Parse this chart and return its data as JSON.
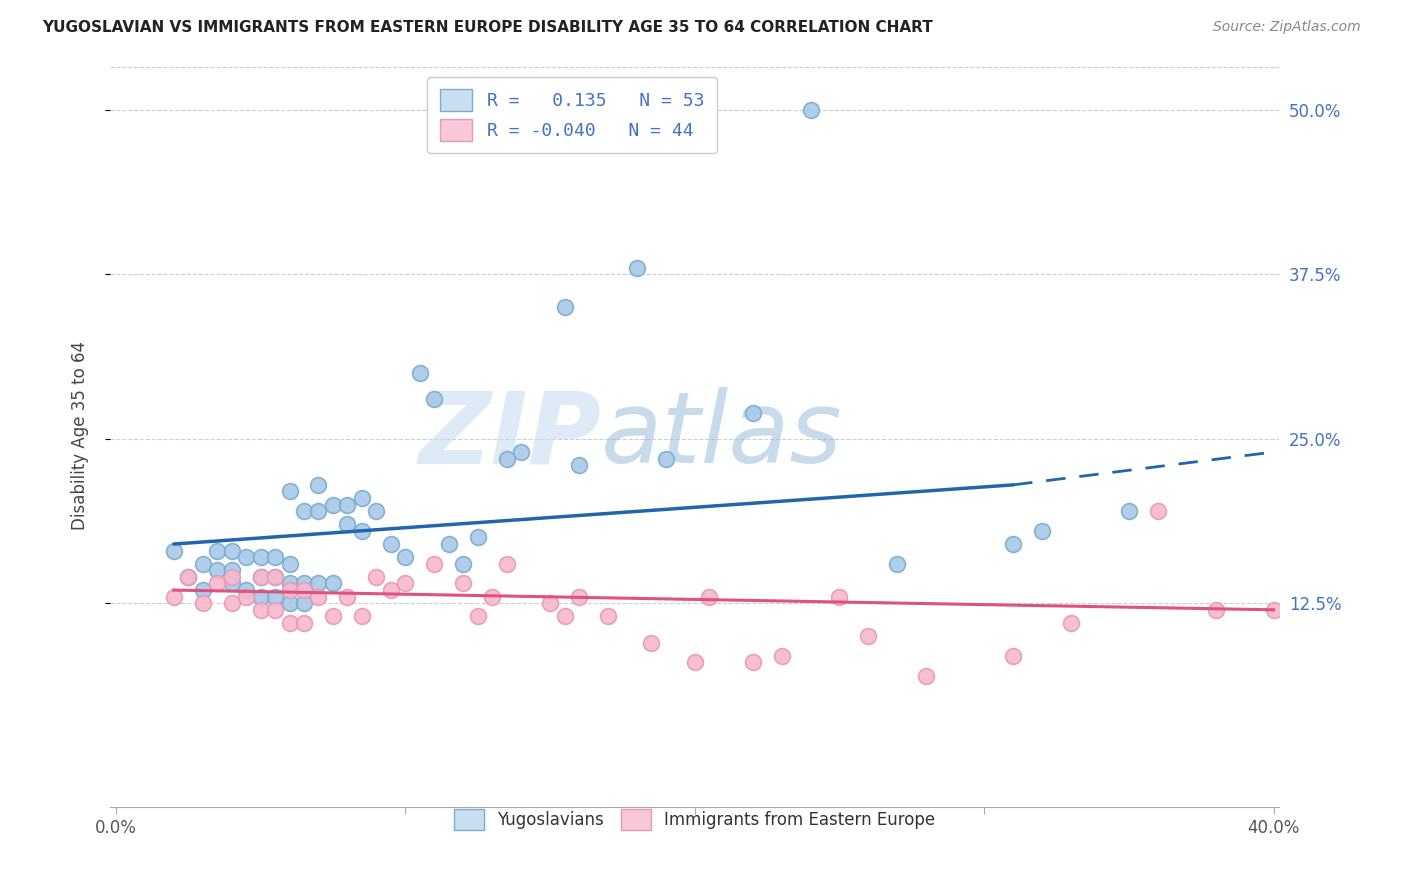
{
  "title": "YUGOSLAVIAN VS IMMIGRANTS FROM EASTERN EUROPE DISABILITY AGE 35 TO 64 CORRELATION CHART",
  "source": "Source: ZipAtlas.com",
  "ylabel": "Disability Age 35 to 64",
  "ytick_labels": [
    "12.5%",
    "25.0%",
    "37.5%",
    "50.0%"
  ],
  "ytick_values": [
    0.125,
    0.25,
    0.375,
    0.5
  ],
  "xlim": [
    0.0,
    0.4
  ],
  "ylim": [
    -0.03,
    0.535
  ],
  "legend_labels": [
    "Yugoslavians",
    "Immigrants from Eastern Europe"
  ],
  "r_blue": 0.135,
  "n_blue": 53,
  "r_pink": -0.04,
  "n_pink": 44,
  "watermark_zip": "ZIP",
  "watermark_atlas": "atlas",
  "blue_color": "#a8c8e8",
  "pink_color": "#f8b8cc",
  "line_blue": "#2166ac",
  "line_pink": "#e05080",
  "blue_points_x": [
    0.02,
    0.025,
    0.03,
    0.03,
    0.035,
    0.035,
    0.04,
    0.04,
    0.04,
    0.045,
    0.045,
    0.05,
    0.05,
    0.05,
    0.055,
    0.055,
    0.055,
    0.06,
    0.06,
    0.06,
    0.06,
    0.065,
    0.065,
    0.065,
    0.07,
    0.07,
    0.07,
    0.075,
    0.075,
    0.08,
    0.08,
    0.085,
    0.085,
    0.09,
    0.095,
    0.1,
    0.105,
    0.11,
    0.115,
    0.12,
    0.125,
    0.135,
    0.14,
    0.155,
    0.16,
    0.18,
    0.19,
    0.22,
    0.24,
    0.27,
    0.31,
    0.32,
    0.35
  ],
  "blue_points_y": [
    0.165,
    0.145,
    0.135,
    0.155,
    0.15,
    0.165,
    0.14,
    0.15,
    0.165,
    0.135,
    0.16,
    0.13,
    0.145,
    0.16,
    0.13,
    0.145,
    0.16,
    0.125,
    0.14,
    0.155,
    0.21,
    0.125,
    0.14,
    0.195,
    0.14,
    0.195,
    0.215,
    0.14,
    0.2,
    0.185,
    0.2,
    0.18,
    0.205,
    0.195,
    0.17,
    0.16,
    0.3,
    0.28,
    0.17,
    0.155,
    0.175,
    0.235,
    0.24,
    0.35,
    0.23,
    0.38,
    0.235,
    0.27,
    0.5,
    0.155,
    0.17,
    0.18,
    0.195
  ],
  "pink_points_x": [
    0.02,
    0.025,
    0.03,
    0.035,
    0.04,
    0.04,
    0.045,
    0.05,
    0.05,
    0.055,
    0.055,
    0.06,
    0.06,
    0.065,
    0.065,
    0.07,
    0.075,
    0.08,
    0.085,
    0.09,
    0.095,
    0.1,
    0.11,
    0.12,
    0.125,
    0.13,
    0.135,
    0.15,
    0.155,
    0.16,
    0.17,
    0.185,
    0.2,
    0.205,
    0.22,
    0.23,
    0.25,
    0.26,
    0.28,
    0.31,
    0.33,
    0.36,
    0.38,
    0.4
  ],
  "pink_points_y": [
    0.13,
    0.145,
    0.125,
    0.14,
    0.125,
    0.145,
    0.13,
    0.12,
    0.145,
    0.12,
    0.145,
    0.11,
    0.135,
    0.11,
    0.135,
    0.13,
    0.115,
    0.13,
    0.115,
    0.145,
    0.135,
    0.14,
    0.155,
    0.14,
    0.115,
    0.13,
    0.155,
    0.125,
    0.115,
    0.13,
    0.115,
    0.095,
    0.08,
    0.13,
    0.08,
    0.085,
    0.13,
    0.1,
    0.07,
    0.085,
    0.11,
    0.195,
    0.12,
    0.12
  ],
  "blue_line_x_start": 0.02,
  "blue_line_x_solid_end": 0.31,
  "blue_line_x_dash_end": 0.4,
  "blue_line_y_start": 0.17,
  "blue_line_y_solid_end": 0.215,
  "blue_line_y_dash_end": 0.24,
  "pink_line_x_start": 0.02,
  "pink_line_x_end": 0.4,
  "pink_line_y_start": 0.135,
  "pink_line_y_end": 0.12
}
